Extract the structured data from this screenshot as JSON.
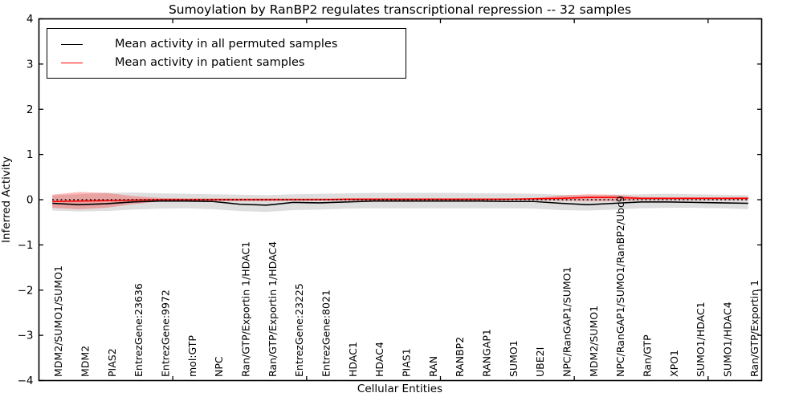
{
  "figure": {
    "title": "Sumoylation by RanBP2 regulates transcriptional repression -- 32 samples",
    "xlabel": "Cellular Entities",
    "ylabel": "Inferred Activity"
  },
  "legend": {
    "items": [
      {
        "label": "Mean activity in all permuted samples",
        "color": "#000000"
      },
      {
        "label": "Mean activity in patient samples",
        "color": "#ff0000"
      }
    ],
    "position": "upper left"
  },
  "chart_data": {
    "type": "line",
    "title": "Sumoylation by RanBP2 regulates transcriptional repression -- 32 samples",
    "xlabel": "Cellular Entities",
    "ylabel": "Inferred Activity",
    "sample_count_in_title": "32 samples",
    "grid": false,
    "ylim": [
      -4,
      4
    ],
    "yticks": [
      -4,
      -3,
      -2,
      -1,
      0,
      1,
      2,
      3,
      4
    ],
    "x_axis_units": 27,
    "x_minor_tick_positions": [
      5,
      10,
      15,
      20,
      25
    ],
    "categories": [
      "MDM2/SUMO1/SUMO1",
      "MDM2",
      "PIAS2",
      "EntrezGene:23636",
      "EntrezGene:9972",
      "mol:GTP",
      "NPC",
      "Ran/GTP/Exportin 1/HDAC1",
      "Ran/GTP/Exportin 1/HDAC4",
      "EntrezGene:23225",
      "EntrezGene:8021",
      "HDAC1",
      "HDAC4",
      "PIAS1",
      "RAN",
      "RANBP2",
      "RANGAP1",
      "SUMO1",
      "UBE2I",
      "NPC/RanGAP1/SUMO1",
      "MDM2/SUMO1",
      "NPC/RanGAP1/SUMO1/RanBP2/Ubc9",
      "Ran/GTP",
      "XPO1",
      "SUMO1/HDAC1",
      "SUMO1/HDAC4",
      "Ran/GTP/Exportin 1"
    ],
    "zero_line": {
      "y": 0,
      "style": "dotted",
      "color": "#000000"
    },
    "series": [
      {
        "name": "Mean activity in all permuted samples",
        "color": "#000000",
        "band_color": "rgba(0,0,0,0.13)",
        "values": [
          -0.08,
          -0.11,
          -0.09,
          -0.05,
          -0.03,
          -0.03,
          -0.04,
          -0.1,
          -0.12,
          -0.06,
          -0.07,
          -0.05,
          -0.03,
          -0.03,
          -0.03,
          -0.03,
          -0.03,
          -0.04,
          -0.04,
          -0.08,
          -0.11,
          -0.08,
          -0.05,
          -0.05,
          -0.06,
          -0.07,
          -0.08
        ],
        "band_upper": [
          0.1,
          0.12,
          0.15,
          0.16,
          0.14,
          0.13,
          0.12,
          0.11,
          0.1,
          0.12,
          0.13,
          0.14,
          0.15,
          0.15,
          0.15,
          0.15,
          0.14,
          0.14,
          0.13,
          0.11,
          0.09,
          0.11,
          0.12,
          0.13,
          0.12,
          0.11,
          0.1
        ],
        "band_lower": [
          -0.24,
          -0.26,
          -0.25,
          -0.22,
          -0.2,
          -0.19,
          -0.21,
          -0.25,
          -0.27,
          -0.23,
          -0.22,
          -0.2,
          -0.19,
          -0.19,
          -0.19,
          -0.19,
          -0.19,
          -0.19,
          -0.2,
          -0.23,
          -0.24,
          -0.22,
          -0.19,
          -0.18,
          -0.18,
          -0.19,
          -0.21
        ]
      },
      {
        "name": "Mean activity in patient samples",
        "color": "#ff0000",
        "band_color": "rgba(255,0,0,0.27)",
        "values": [
          -0.04,
          -0.03,
          -0.02,
          -0.01,
          0.0,
          0.0,
          0.0,
          0.0,
          0.0,
          0.0,
          0.0,
          0.01,
          0.01,
          0.01,
          0.01,
          0.01,
          0.01,
          0.01,
          0.02,
          0.03,
          0.05,
          0.05,
          0.03,
          0.03,
          0.03,
          0.03,
          0.03
        ],
        "band_upper": [
          0.11,
          0.17,
          0.15,
          0.08,
          0.04,
          0.03,
          0.03,
          0.03,
          0.03,
          0.03,
          0.03,
          0.03,
          0.03,
          0.03,
          0.03,
          0.03,
          0.03,
          0.03,
          0.04,
          0.09,
          0.12,
          0.11,
          0.06,
          0.05,
          0.05,
          0.05,
          0.06
        ],
        "band_lower": [
          -0.18,
          -0.21,
          -0.18,
          -0.1,
          -0.04,
          -0.03,
          -0.03,
          -0.03,
          -0.03,
          -0.02,
          -0.02,
          -0.02,
          -0.02,
          -0.02,
          -0.01,
          -0.01,
          -0.01,
          -0.01,
          -0.01,
          -0.02,
          -0.03,
          -0.03,
          -0.01,
          -0.01,
          -0.01,
          -0.01,
          -0.01
        ]
      }
    ],
    "legend_position": "upper left"
  }
}
